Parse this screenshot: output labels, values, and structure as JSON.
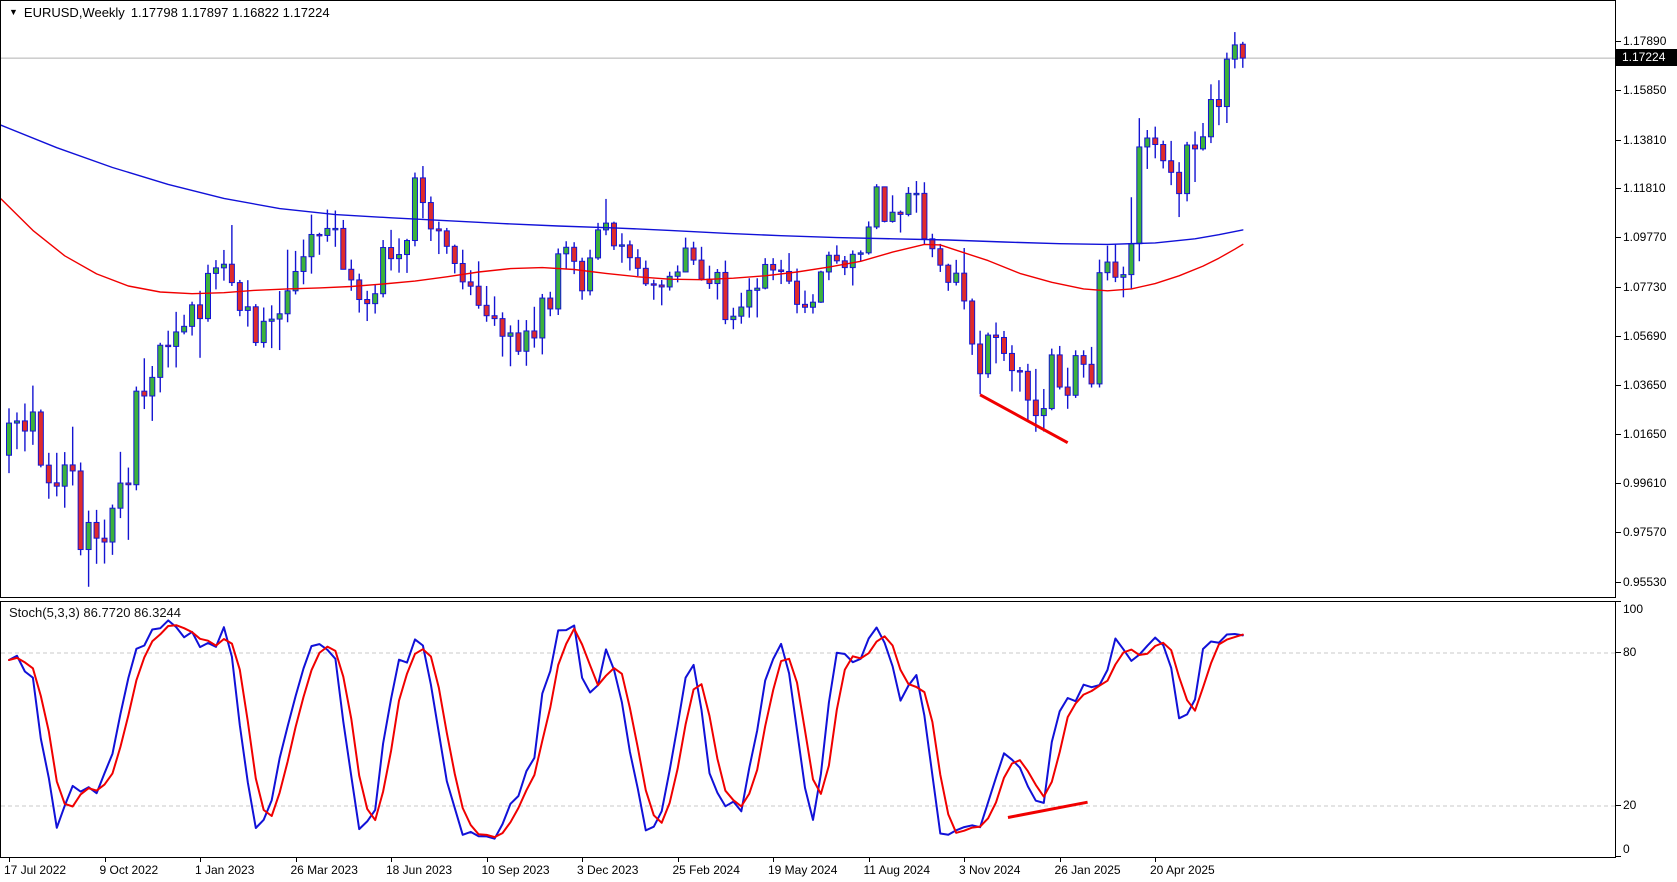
{
  "header": {
    "symbol_timeframe": "EURUSD,Weekly",
    "ohlc": "1.17798 1.17897 1.16822 1.17224"
  },
  "indicator": {
    "label": "Stoch(5,3,3) 86.7720 86.3244",
    "name": "Stoch(5,3,3)",
    "main_value": "86.7720",
    "signal_value": "86.3244"
  },
  "price_axis": {
    "current_price": "1.17224",
    "labels": [
      "1.17890",
      "1.15850",
      "1.13810",
      "1.11810",
      "1.09770",
      "1.07730",
      "1.05690",
      "1.03650",
      "1.01650",
      "0.99610",
      "0.97570",
      "0.95530"
    ]
  },
  "stoch_axis": {
    "labels": [
      "100",
      "80",
      "20",
      "0"
    ]
  },
  "time_axis": {
    "labels": [
      "17 Jul 2022",
      "9 Oct 2022",
      "1 Jan 2023",
      "26 Mar 2023",
      "18 Jun 2023",
      "10 Sep 2023",
      "3 Dec 2023",
      "25 Feb 2024",
      "19 May 2024",
      "11 Aug 2024",
      "3 Nov 2024",
      "26 Jan 2025",
      "20 Apr 2025"
    ]
  },
  "colors": {
    "bull_fill": "#3cb23c",
    "bear_fill": "#e02b2b",
    "candle_outline": "#1414d2",
    "ma_blue": "#1111d8",
    "ma_red": "#f00000",
    "stoch_main": "#1111d8",
    "stoch_signal": "#f00000",
    "trendline": "#f00000",
    "grid_dash": "#c8c8c8",
    "price_line": "#b0b0b0",
    "badge_bg": "#000000",
    "badge_text": "#ffffff"
  },
  "chart_data": {
    "type": "candlestick",
    "symbol": "EURUSD",
    "timeframe": "Weekly",
    "start_date": "17 Jul 2022",
    "bar_interval_weeks": 1,
    "main_ylim": [
      0.9486,
      1.1959
    ],
    "stoch_ylim": [
      0,
      100
    ],
    "stoch_levels": [
      80,
      20
    ],
    "current_bar_ohlc": {
      "open": 1.17798,
      "high": 1.17897,
      "low": 1.16822,
      "close": 1.17224
    },
    "candles": [
      [
        1.008,
        1.0274,
        1.0006,
        1.0213
      ],
      [
        1.0213,
        1.0257,
        1.0105,
        1.0222
      ],
      [
        1.0222,
        1.0294,
        1.0096,
        1.018
      ],
      [
        1.018,
        1.0368,
        1.0123,
        1.0259
      ],
      [
        1.0259,
        1.0269,
        1.003,
        1.0039
      ],
      [
        1.0039,
        1.009,
        0.99,
        0.9966
      ],
      [
        0.9966,
        1.009,
        0.991,
        0.9952
      ],
      [
        0.9952,
        1.0093,
        0.9863,
        1.004
      ],
      [
        1.004,
        1.0198,
        0.9955,
        1.0015
      ],
      [
        1.0015,
        1.005,
        0.9666,
        0.969
      ],
      [
        0.969,
        0.9851,
        0.9536,
        0.9802
      ],
      [
        0.9802,
        0.9854,
        0.9631,
        0.9737
      ],
      [
        0.9737,
        0.9814,
        0.9632,
        0.9721
      ],
      [
        0.9721,
        0.9876,
        0.9668,
        0.9861
      ],
      [
        0.9861,
        1.0094,
        0.982,
        0.9965
      ],
      [
        0.9965,
        1.0029,
        0.973,
        0.9958
      ],
      [
        0.9958,
        1.0364,
        0.9935,
        1.0345
      ],
      [
        1.0345,
        1.0481,
        1.0271,
        1.0325
      ],
      [
        1.0325,
        1.0449,
        1.0222,
        1.0402
      ],
      [
        1.0402,
        1.0545,
        1.034,
        1.0535
      ],
      [
        1.0535,
        1.0595,
        1.0443,
        1.053
      ],
      [
        1.053,
        1.0673,
        1.0443,
        1.059
      ],
      [
        1.059,
        1.0661,
        1.058,
        1.0613
      ],
      [
        1.0613,
        1.0715,
        1.0575,
        1.0702
      ],
      [
        1.0702,
        1.076,
        1.0483,
        1.0645
      ],
      [
        1.0645,
        1.0868,
        1.0632,
        1.0832
      ],
      [
        1.0832,
        1.0887,
        1.0766,
        1.0855
      ],
      [
        1.0855,
        1.0929,
        1.0802,
        1.087
      ],
      [
        1.087,
        1.1032,
        1.078,
        1.0794
      ],
      [
        1.0794,
        1.0805,
        1.0655,
        1.0679
      ],
      [
        1.0679,
        1.0804,
        1.0612,
        1.0694
      ],
      [
        1.0694,
        1.0705,
        1.0532,
        1.0546
      ],
      [
        1.0546,
        1.0691,
        1.0525,
        1.0634
      ],
      [
        1.0634,
        1.07,
        1.0523,
        1.0643
      ],
      [
        1.0643,
        1.0759,
        1.0515,
        1.0665
      ],
      [
        1.0665,
        1.093,
        1.063,
        1.076
      ],
      [
        1.076,
        1.0925,
        1.0745,
        1.084
      ],
      [
        1.084,
        1.0972,
        1.0787,
        1.0901
      ],
      [
        1.0901,
        1.1075,
        1.0831,
        1.0993
      ],
      [
        1.0993,
        1.1,
        1.0909,
        1.0989
      ],
      [
        1.0989,
        1.1096,
        1.0963,
        1.1018
      ],
      [
        1.1018,
        1.1092,
        1.0942,
        1.1018
      ],
      [
        1.1018,
        1.1053,
        1.0848,
        1.0849
      ],
      [
        1.0849,
        1.0889,
        1.076,
        1.0805
      ],
      [
        1.0805,
        1.0831,
        1.067,
        1.0724
      ],
      [
        1.0724,
        1.076,
        1.0635,
        1.0707
      ],
      [
        1.0707,
        1.0787,
        1.0666,
        1.0748
      ],
      [
        1.0748,
        1.097,
        1.0733,
        1.0939
      ],
      [
        1.0939,
        1.1012,
        1.0844,
        1.0893
      ],
      [
        1.0893,
        1.0977,
        1.0835,
        1.091
      ],
      [
        1.091,
        1.0975,
        1.0834,
        1.0968
      ],
      [
        1.0968,
        1.1249,
        1.0944,
        1.1227
      ],
      [
        1.1227,
        1.1276,
        1.106,
        1.1125
      ],
      [
        1.1125,
        1.115,
        1.0966,
        1.1016
      ],
      [
        1.1016,
        1.1046,
        1.0912,
        1.1008
      ],
      [
        1.1008,
        1.102,
        1.0913,
        1.0944
      ],
      [
        1.0944,
        1.0951,
        1.0832,
        1.0873
      ],
      [
        1.0873,
        1.093,
        1.0766,
        1.0797
      ],
      [
        1.0797,
        1.0845,
        1.0742,
        1.0779
      ],
      [
        1.0779,
        1.0882,
        1.0686,
        1.07
      ],
      [
        1.07,
        1.078,
        1.0632,
        1.0657
      ],
      [
        1.0657,
        1.0737,
        1.0615,
        1.0645
      ],
      [
        1.0645,
        1.0671,
        1.0488,
        1.0572
      ],
      [
        1.0572,
        1.0617,
        1.0448,
        1.0586
      ],
      [
        1.0586,
        1.064,
        1.0495,
        1.051
      ],
      [
        1.051,
        1.0639,
        1.045,
        1.0594
      ],
      [
        1.0594,
        1.0694,
        1.0525,
        1.0565
      ],
      [
        1.0565,
        1.0747,
        1.0497,
        1.073
      ],
      [
        1.073,
        1.0756,
        1.0655,
        1.0685
      ],
      [
        1.0685,
        1.0935,
        1.066,
        1.0913
      ],
      [
        1.0913,
        1.0965,
        1.0852,
        1.094
      ],
      [
        1.094,
        1.0961,
        1.0829,
        1.0882
      ],
      [
        1.0882,
        1.0897,
        1.0723,
        1.076
      ],
      [
        1.076,
        1.093,
        1.0741,
        1.0896
      ],
      [
        1.0896,
        1.1041,
        1.0888,
        1.1012
      ],
      [
        1.1012,
        1.114,
        1.099,
        1.104
      ],
      [
        1.104,
        1.1046,
        1.0929,
        1.0946
      ],
      [
        1.0946,
        1.0998,
        1.0876,
        1.095
      ],
      [
        1.095,
        1.0968,
        1.0844,
        1.0897
      ],
      [
        1.0897,
        1.0932,
        1.0821,
        1.0853
      ],
      [
        1.0853,
        1.0885,
        1.078,
        1.0789
      ],
      [
        1.0789,
        1.0806,
        1.0723,
        1.0784
      ],
      [
        1.0784,
        1.0805,
        1.07,
        1.0776
      ],
      [
        1.0776,
        1.0839,
        1.0761,
        1.082
      ],
      [
        1.082,
        1.0865,
        1.0795,
        1.0838
      ],
      [
        1.0838,
        1.098,
        1.0837,
        1.0937
      ],
      [
        1.0937,
        1.0963,
        1.0867,
        1.0887
      ],
      [
        1.0887,
        1.0942,
        1.0802,
        1.0808
      ],
      [
        1.0808,
        1.0864,
        1.0768,
        1.079
      ],
      [
        1.079,
        1.085,
        1.0724,
        1.0836
      ],
      [
        1.0836,
        1.0885,
        1.0622,
        1.0641
      ],
      [
        1.0641,
        1.069,
        1.0601,
        1.0655
      ],
      [
        1.0655,
        1.0752,
        1.0624,
        1.0693
      ],
      [
        1.0693,
        1.0812,
        1.0649,
        1.0762
      ],
      [
        1.0762,
        1.0812,
        1.065,
        1.0771
      ],
      [
        1.0771,
        1.0895,
        1.0766,
        1.0869
      ],
      [
        1.0869,
        1.0895,
        1.0804,
        1.0846
      ],
      [
        1.0846,
        1.0888,
        1.0788,
        1.084
      ],
      [
        1.084,
        1.0916,
        1.0788,
        1.08
      ],
      [
        1.08,
        1.0852,
        1.0667,
        1.0704
      ],
      [
        1.0704,
        1.0761,
        1.0668,
        1.0692
      ],
      [
        1.0692,
        1.0746,
        1.0666,
        1.0713
      ],
      [
        1.0713,
        1.0843,
        1.071,
        1.0838
      ],
      [
        1.0838,
        1.0922,
        1.0804,
        1.0907
      ],
      [
        1.0907,
        1.0948,
        1.0872,
        1.0884
      ],
      [
        1.0884,
        1.0904,
        1.0825,
        1.0856
      ],
      [
        1.0856,
        1.0927,
        1.0782,
        1.0911
      ],
      [
        1.0911,
        1.0927,
        1.0881,
        1.0917
      ],
      [
        1.0917,
        1.1047,
        1.091,
        1.1024
      ],
      [
        1.1024,
        1.1201,
        1.1015,
        1.119
      ],
      [
        1.119,
        1.119,
        1.1043,
        1.1047
      ],
      [
        1.1047,
        1.1155,
        1.1042,
        1.1085
      ],
      [
        1.1085,
        1.1092,
        1.1001,
        1.1076
      ],
      [
        1.1076,
        1.1189,
        1.1068,
        1.1163
      ],
      [
        1.1163,
        1.1214,
        1.1083,
        1.1163
      ],
      [
        1.1163,
        1.1209,
        1.0951,
        1.0975
      ],
      [
        1.0975,
        1.0996,
        1.0899,
        1.0934
      ],
      [
        1.0934,
        1.0954,
        1.0838,
        1.0866
      ],
      [
        1.0866,
        1.0872,
        1.076,
        1.0795
      ],
      [
        1.0795,
        1.0888,
        1.0782,
        1.0833
      ],
      [
        1.0833,
        1.0937,
        1.0683,
        1.0718
      ],
      [
        1.0718,
        1.0728,
        1.0495,
        1.054
      ],
      [
        1.054,
        1.0595,
        1.0332,
        1.0417
      ],
      [
        1.0417,
        1.0587,
        1.04,
        1.0577
      ],
      [
        1.0577,
        1.0629,
        1.046,
        1.0567
      ],
      [
        1.0567,
        1.0594,
        1.047,
        1.0501
      ],
      [
        1.0501,
        1.0535,
        1.0344,
        1.043
      ],
      [
        1.043,
        1.0445,
        1.0343,
        1.0427
      ],
      [
        1.0427,
        1.0458,
        1.0224,
        1.0308
      ],
      [
        1.0308,
        1.0437,
        1.0177,
        1.0244
      ],
      [
        1.0244,
        1.0354,
        1.0178,
        1.0273
      ],
      [
        1.0273,
        1.0521,
        1.0266,
        1.0495
      ],
      [
        1.0495,
        1.0532,
        1.0352,
        1.0362
      ],
      [
        1.0362,
        1.0442,
        1.0272,
        1.0328
      ],
      [
        1.0328,
        1.0514,
        1.0317,
        1.0492
      ],
      [
        1.0492,
        1.0514,
        1.0401,
        1.0456
      ],
      [
        1.0456,
        1.0528,
        1.036,
        1.0375
      ],
      [
        1.0375,
        1.0889,
        1.036,
        1.0835
      ],
      [
        1.0835,
        1.0947,
        1.0803,
        1.0879
      ],
      [
        1.0879,
        1.0955,
        1.0796,
        1.0816
      ],
      [
        1.0816,
        1.086,
        1.0733,
        1.0827
      ],
      [
        1.0827,
        1.1147,
        1.0769,
        1.0955
      ],
      [
        1.0955,
        1.1474,
        1.0882,
        1.1355
      ],
      [
        1.1355,
        1.1425,
        1.1264,
        1.1392
      ],
      [
        1.1392,
        1.1439,
        1.1308,
        1.1365
      ],
      [
        1.1365,
        1.1381,
        1.1266,
        1.1298
      ],
      [
        1.1298,
        1.138,
        1.1197,
        1.125
      ],
      [
        1.125,
        1.1292,
        1.1065,
        1.1162
      ],
      [
        1.1162,
        1.1376,
        1.113,
        1.1363
      ],
      [
        1.1363,
        1.1419,
        1.121,
        1.1347
      ],
      [
        1.1347,
        1.1454,
        1.134,
        1.1397
      ],
      [
        1.1397,
        1.1614,
        1.1371,
        1.1551
      ],
      [
        1.1551,
        1.1631,
        1.1445,
        1.1522
      ],
      [
        1.1522,
        1.1745,
        1.1454,
        1.1718
      ],
      [
        1.1718,
        1.183,
        1.168,
        1.1777
      ],
      [
        1.17798,
        1.17897,
        1.16822,
        1.17224
      ]
    ],
    "ma_blue_points": [
      [
        -1,
        1.1445
      ],
      [
        6,
        1.1352
      ],
      [
        13,
        1.127
      ],
      [
        20,
        1.12
      ],
      [
        27,
        1.1142
      ],
      [
        34,
        1.11
      ],
      [
        41,
        1.1075
      ],
      [
        48,
        1.1062
      ],
      [
        55,
        1.105
      ],
      [
        62,
        1.1038
      ],
      [
        69,
        1.1028
      ],
      [
        76,
        1.102
      ],
      [
        83,
        1.101
      ],
      [
        90,
        1.0998
      ],
      [
        97,
        1.0988
      ],
      [
        104,
        1.098
      ],
      [
        111,
        1.0975
      ],
      [
        118,
        1.097
      ],
      [
        125,
        1.0962
      ],
      [
        132,
        1.0955
      ],
      [
        138,
        1.0952
      ],
      [
        144,
        1.0958
      ],
      [
        149,
        1.0975
      ],
      [
        152,
        1.0992
      ],
      [
        155,
        1.1012
      ]
    ],
    "ma_red_points": [
      [
        -1,
        1.114
      ],
      [
        3,
        1.101
      ],
      [
        7,
        1.0905
      ],
      [
        11,
        1.083
      ],
      [
        15,
        1.078
      ],
      [
        19,
        1.0755
      ],
      [
        23,
        1.0748
      ],
      [
        27,
        1.0752
      ],
      [
        31,
        1.0762
      ],
      [
        35,
        1.0768
      ],
      [
        39,
        1.0772
      ],
      [
        43,
        1.0778
      ],
      [
        47,
        1.0788
      ],
      [
        51,
        1.08
      ],
      [
        55,
        1.0818
      ],
      [
        59,
        1.0838
      ],
      [
        63,
        1.0852
      ],
      [
        67,
        1.0856
      ],
      [
        71,
        1.0848
      ],
      [
        75,
        1.0832
      ],
      [
        79,
        1.0818
      ],
      [
        83,
        1.0808
      ],
      [
        87,
        1.0806
      ],
      [
        91,
        1.0812
      ],
      [
        95,
        1.0822
      ],
      [
        99,
        1.0838
      ],
      [
        103,
        1.0858
      ],
      [
        107,
        1.0882
      ],
      [
        111,
        1.092
      ],
      [
        115,
        1.0952
      ],
      [
        117,
        1.095
      ],
      [
        119,
        1.0928
      ],
      [
        123,
        1.0885
      ],
      [
        127,
        1.0832
      ],
      [
        131,
        1.0795
      ],
      [
        135,
        1.0768
      ],
      [
        138,
        1.076
      ],
      [
        141,
        1.0768
      ],
      [
        144,
        1.079
      ],
      [
        147,
        1.0822
      ],
      [
        150,
        1.0862
      ],
      [
        152,
        1.0895
      ],
      [
        154,
        1.0932
      ],
      [
        155,
        1.0952
      ]
    ],
    "trendline_main": {
      "from_bar": 122,
      "from_price": 1.033,
      "to_bar": 133,
      "to_price": 1.0132
    },
    "trendline_stoch": {
      "from_bar": 125.5,
      "from_value": 15.5,
      "to_bar": 135.5,
      "to_value": 21.5
    },
    "stoch_params": {
      "k_period": 5,
      "d_period": 3,
      "slowing": 3
    }
  }
}
